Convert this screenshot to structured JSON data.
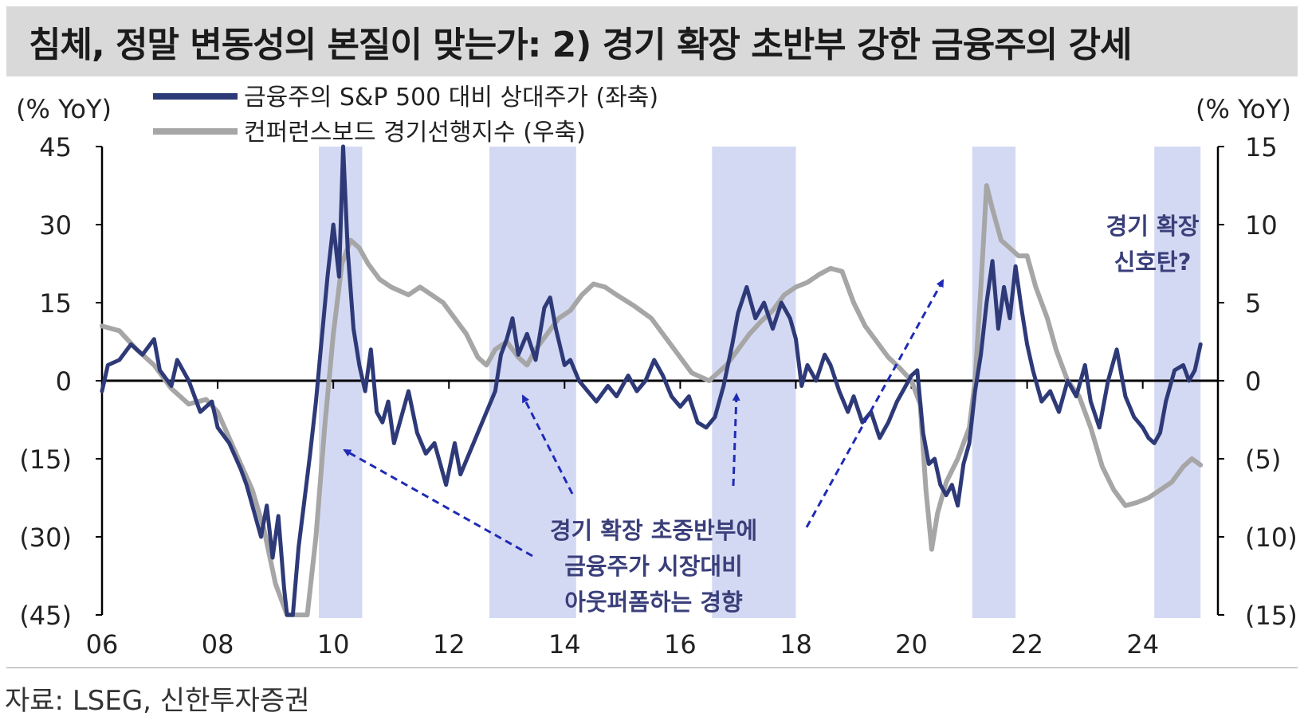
{
  "title": "침체, 정말 변동성의 본질이 맞는가: 2) 경기 확장 초반부 강한 금융주의 강세",
  "source": "자료: LSEG, 신한투자증권",
  "colors": {
    "navy": "#2e3a78",
    "gray": "#a6a6a6",
    "shade": "#d4d9f3",
    "arrow": "#1f2bb5",
    "annot": "#3a3f7a"
  },
  "chart_data": {
    "type": "line",
    "y_left": {
      "unit": "(% YoY)",
      "range": [
        -45,
        45
      ],
      "ticks": [
        "45",
        "30",
        "15",
        "0",
        "(15)",
        "(30)",
        "(45)"
      ]
    },
    "y_right": {
      "unit": "(% YoY)",
      "range": [
        -15,
        15
      ],
      "ticks": [
        "15",
        "10",
        "5",
        "0",
        "(5)",
        "(10)",
        "(15)"
      ]
    },
    "x_ticks": [
      "06",
      "08",
      "10",
      "12",
      "14",
      "16",
      "18",
      "20",
      "22",
      "24"
    ],
    "x_range": [
      2006,
      2025.3
    ],
    "shaded_periods": [
      [
        2009.75,
        2010.5
      ],
      [
        2012.7,
        2014.2
      ],
      [
        2016.55,
        2018.0
      ],
      [
        2021.05,
        2021.8
      ],
      [
        2024.2,
        2025.0
      ]
    ],
    "series": [
      {
        "name": "금융주의 S&P 500 대비 상대주가 (좌축)",
        "axis": "left",
        "color": "#2e3a78",
        "points": [
          [
            2006.0,
            -2
          ],
          [
            2006.1,
            3
          ],
          [
            2006.3,
            4
          ],
          [
            2006.5,
            7
          ],
          [
            2006.7,
            5
          ],
          [
            2006.9,
            8
          ],
          [
            2007.0,
            2
          ],
          [
            2007.2,
            -1
          ],
          [
            2007.3,
            4
          ],
          [
            2007.5,
            0
          ],
          [
            2007.7,
            -6
          ],
          [
            2007.9,
            -4
          ],
          [
            2008.0,
            -9
          ],
          [
            2008.2,
            -12
          ],
          [
            2008.4,
            -17
          ],
          [
            2008.5,
            -20
          ],
          [
            2008.6,
            -24
          ],
          [
            2008.75,
            -30
          ],
          [
            2008.85,
            -24
          ],
          [
            2008.95,
            -34
          ],
          [
            2009.05,
            -26
          ],
          [
            2009.15,
            -40
          ],
          [
            2009.2,
            -47
          ],
          [
            2009.3,
            -45
          ],
          [
            2009.4,
            -32
          ],
          [
            2009.5,
            -23
          ],
          [
            2009.6,
            -14
          ],
          [
            2009.7,
            -4
          ],
          [
            2009.8,
            8
          ],
          [
            2009.9,
            20
          ],
          [
            2010.0,
            30
          ],
          [
            2010.1,
            20
          ],
          [
            2010.17,
            45
          ],
          [
            2010.25,
            25
          ],
          [
            2010.35,
            10
          ],
          [
            2010.45,
            3
          ],
          [
            2010.55,
            -2
          ],
          [
            2010.65,
            6
          ],
          [
            2010.75,
            -6
          ],
          [
            2010.85,
            -8
          ],
          [
            2010.95,
            -4
          ],
          [
            2011.05,
            -12
          ],
          [
            2011.15,
            -8
          ],
          [
            2011.3,
            -2
          ],
          [
            2011.45,
            -10
          ],
          [
            2011.6,
            -14
          ],
          [
            2011.75,
            -12
          ],
          [
            2011.85,
            -16
          ],
          [
            2011.95,
            -20
          ],
          [
            2012.1,
            -12
          ],
          [
            2012.2,
            -18
          ],
          [
            2012.35,
            -14
          ],
          [
            2012.5,
            -10
          ],
          [
            2012.65,
            -6
          ],
          [
            2012.8,
            -2
          ],
          [
            2012.9,
            5
          ],
          [
            2013.0,
            8
          ],
          [
            2013.1,
            12
          ],
          [
            2013.2,
            5
          ],
          [
            2013.35,
            9
          ],
          [
            2013.5,
            4
          ],
          [
            2013.65,
            14
          ],
          [
            2013.75,
            16
          ],
          [
            2013.85,
            10
          ],
          [
            2014.0,
            3
          ],
          [
            2014.1,
            4
          ],
          [
            2014.25,
            0
          ],
          [
            2014.4,
            -2
          ],
          [
            2014.55,
            -4
          ],
          [
            2014.75,
            -1
          ],
          [
            2014.9,
            -3
          ],
          [
            2015.1,
            1
          ],
          [
            2015.25,
            -2
          ],
          [
            2015.4,
            0
          ],
          [
            2015.55,
            4
          ],
          [
            2015.7,
            1
          ],
          [
            2015.85,
            -3
          ],
          [
            2016.0,
            -5
          ],
          [
            2016.15,
            -3
          ],
          [
            2016.3,
            -8
          ],
          [
            2016.45,
            -9
          ],
          [
            2016.6,
            -7
          ],
          [
            2016.75,
            -1
          ],
          [
            2016.9,
            7
          ],
          [
            2017.0,
            13
          ],
          [
            2017.15,
            18
          ],
          [
            2017.3,
            12
          ],
          [
            2017.45,
            15
          ],
          [
            2017.6,
            10
          ],
          [
            2017.75,
            15
          ],
          [
            2017.9,
            12
          ],
          [
            2018.0,
            8
          ],
          [
            2018.1,
            -1
          ],
          [
            2018.2,
            3
          ],
          [
            2018.35,
            0
          ],
          [
            2018.5,
            5
          ],
          [
            2018.6,
            3
          ],
          [
            2018.75,
            -2
          ],
          [
            2018.9,
            -6
          ],
          [
            2019.0,
            -3
          ],
          [
            2019.15,
            -8
          ],
          [
            2019.3,
            -6
          ],
          [
            2019.45,
            -11
          ],
          [
            2019.6,
            -8
          ],
          [
            2019.75,
            -4
          ],
          [
            2019.9,
            -1
          ],
          [
            2020.0,
            1
          ],
          [
            2020.1,
            2
          ],
          [
            2020.2,
            -10
          ],
          [
            2020.3,
            -16
          ],
          [
            2020.4,
            -15
          ],
          [
            2020.5,
            -20
          ],
          [
            2020.6,
            -22
          ],
          [
            2020.7,
            -20
          ],
          [
            2020.8,
            -24
          ],
          [
            2020.9,
            -16
          ],
          [
            2021.0,
            -12
          ],
          [
            2021.1,
            -2
          ],
          [
            2021.2,
            5
          ],
          [
            2021.3,
            15
          ],
          [
            2021.4,
            23
          ],
          [
            2021.5,
            10
          ],
          [
            2021.6,
            18
          ],
          [
            2021.7,
            12
          ],
          [
            2021.8,
            22
          ],
          [
            2021.9,
            14
          ],
          [
            2022.0,
            7
          ],
          [
            2022.1,
            2
          ],
          [
            2022.25,
            -4
          ],
          [
            2022.4,
            -2
          ],
          [
            2022.55,
            -6
          ],
          [
            2022.7,
            0
          ],
          [
            2022.85,
            -3
          ],
          [
            2023.0,
            3
          ],
          [
            2023.1,
            -4
          ],
          [
            2023.25,
            -9
          ],
          [
            2023.4,
            0
          ],
          [
            2023.55,
            6
          ],
          [
            2023.7,
            -3
          ],
          [
            2023.85,
            -7
          ],
          [
            2024.0,
            -9
          ],
          [
            2024.1,
            -11
          ],
          [
            2024.2,
            -12
          ],
          [
            2024.3,
            -10
          ],
          [
            2024.4,
            -4
          ],
          [
            2024.55,
            2
          ],
          [
            2024.7,
            3
          ],
          [
            2024.8,
            0
          ],
          [
            2024.9,
            2
          ],
          [
            2025.0,
            7
          ]
        ]
      },
      {
        "name": "컨퍼런스보드 경기선행지수 (우축)",
        "axis": "right",
        "color": "#a6a6a6",
        "points": [
          [
            2006.0,
            3.5
          ],
          [
            2006.3,
            3.2
          ],
          [
            2006.6,
            2.0
          ],
          [
            2006.9,
            1.0
          ],
          [
            2007.2,
            -0.5
          ],
          [
            2007.5,
            -1.5
          ],
          [
            2007.8,
            -1.2
          ],
          [
            2008.0,
            -2.0
          ],
          [
            2008.3,
            -4.5
          ],
          [
            2008.6,
            -7.0
          ],
          [
            2008.8,
            -9.5
          ],
          [
            2009.0,
            -13.0
          ],
          [
            2009.2,
            -15.5
          ],
          [
            2009.4,
            -16.5
          ],
          [
            2009.55,
            -15.5
          ],
          [
            2009.7,
            -10.0
          ],
          [
            2009.85,
            -3.0
          ],
          [
            2010.0,
            3.0
          ],
          [
            2010.15,
            7.5
          ],
          [
            2010.3,
            9.0
          ],
          [
            2010.45,
            8.5
          ],
          [
            2010.6,
            7.5
          ],
          [
            2010.8,
            6.5
          ],
          [
            2011.0,
            6.0
          ],
          [
            2011.3,
            5.5
          ],
          [
            2011.5,
            6.0
          ],
          [
            2011.7,
            5.5
          ],
          [
            2011.9,
            5.0
          ],
          [
            2012.1,
            4.0
          ],
          [
            2012.3,
            3.0
          ],
          [
            2012.5,
            1.5
          ],
          [
            2012.65,
            1.0
          ],
          [
            2012.8,
            2.0
          ],
          [
            2013.0,
            2.5
          ],
          [
            2013.2,
            1.5
          ],
          [
            2013.35,
            1.0
          ],
          [
            2013.5,
            2.0
          ],
          [
            2013.7,
            3.0
          ],
          [
            2013.9,
            4.0
          ],
          [
            2014.1,
            4.5
          ],
          [
            2014.3,
            5.5
          ],
          [
            2014.5,
            6.2
          ],
          [
            2014.7,
            6.0
          ],
          [
            2014.9,
            5.5
          ],
          [
            2015.2,
            4.8
          ],
          [
            2015.5,
            4.0
          ],
          [
            2015.8,
            2.5
          ],
          [
            2016.0,
            1.5
          ],
          [
            2016.2,
            0.5
          ],
          [
            2016.5,
            0.0
          ],
          [
            2016.8,
            1.0
          ],
          [
            2017.0,
            2.0
          ],
          [
            2017.2,
            3.0
          ],
          [
            2017.4,
            3.8
          ],
          [
            2017.6,
            4.5
          ],
          [
            2017.8,
            5.5
          ],
          [
            2018.0,
            6.0
          ],
          [
            2018.2,
            6.3
          ],
          [
            2018.4,
            6.8
          ],
          [
            2018.6,
            7.2
          ],
          [
            2018.8,
            7.0
          ],
          [
            2019.0,
            5.0
          ],
          [
            2019.2,
            3.5
          ],
          [
            2019.4,
            2.5
          ],
          [
            2019.6,
            1.5
          ],
          [
            2019.8,
            0.8
          ],
          [
            2020.0,
            0.0
          ],
          [
            2020.15,
            -1.5
          ],
          [
            2020.25,
            -7.0
          ],
          [
            2020.35,
            -10.8
          ],
          [
            2020.45,
            -8.5
          ],
          [
            2020.6,
            -6.5
          ],
          [
            2020.8,
            -5.0
          ],
          [
            2021.0,
            -3.0
          ],
          [
            2021.1,
            0.0
          ],
          [
            2021.2,
            6.0
          ],
          [
            2021.3,
            12.5
          ],
          [
            2021.4,
            11.0
          ],
          [
            2021.55,
            9.0
          ],
          [
            2021.7,
            8.5
          ],
          [
            2021.85,
            8.0
          ],
          [
            2022.0,
            8.0
          ],
          [
            2022.15,
            6.0
          ],
          [
            2022.35,
            4.0
          ],
          [
            2022.5,
            2.0
          ],
          [
            2022.7,
            0.0
          ],
          [
            2022.9,
            -1.0
          ],
          [
            2023.1,
            -3.0
          ],
          [
            2023.3,
            -5.5
          ],
          [
            2023.5,
            -7.0
          ],
          [
            2023.7,
            -8.0
          ],
          [
            2023.9,
            -7.8
          ],
          [
            2024.1,
            -7.5
          ],
          [
            2024.3,
            -7.0
          ],
          [
            2024.5,
            -6.5
          ],
          [
            2024.7,
            -5.5
          ],
          [
            2024.85,
            -5.0
          ],
          [
            2025.0,
            -5.4
          ]
        ]
      }
    ],
    "annotations": {
      "main": [
        "경기 확장 초중반부에",
        "금융주가 시장대비",
        "아웃퍼폼하는 경향"
      ],
      "signal": [
        "경기 확장",
        "신호탄?"
      ]
    }
  }
}
